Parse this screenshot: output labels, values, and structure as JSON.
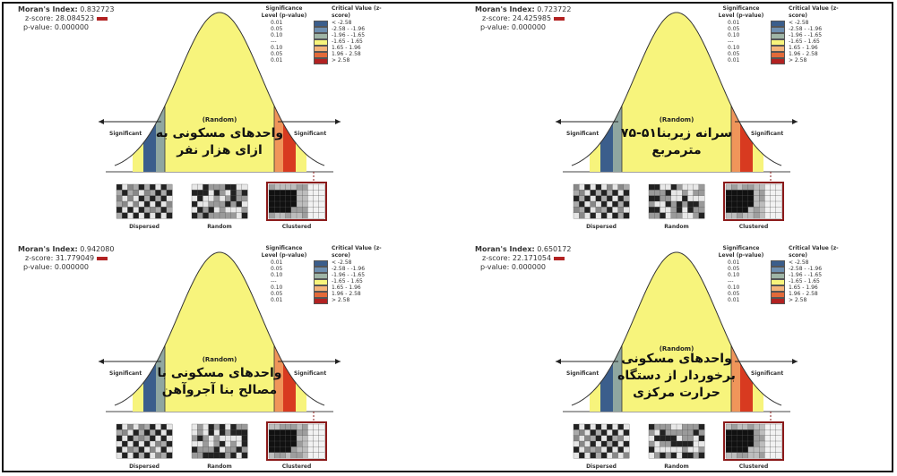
{
  "colors": {
    "curve_fill": "#f7f47c",
    "blue": "#3b5e8c",
    "teal": "#8fa6a0",
    "red": "#d83a20",
    "orange": "#f0955a",
    "dark_red": "#8b1a1a"
  },
  "labels": {
    "random": "(Random)",
    "significant": "Significant",
    "dispersed": "Dispersed",
    "random_map": "Random",
    "clustered": "Clustered",
    "moran": "Moran's Index:",
    "zscore": "z-score:",
    "pvalue": "p-value:"
  },
  "legend": {
    "header_sig": "Significance Level (p-value)",
    "header_crit": "Critical Value (z-score)",
    "rows": [
      {
        "p": "0.01",
        "z": "< -2.58"
      },
      {
        "p": "0.05",
        "z": "-2.58 - -1.96"
      },
      {
        "p": "0.10",
        "z": "-1.96 - -1.65"
      },
      {
        "p": "---",
        "z": "-1.65 - 1.65"
      },
      {
        "p": "0.10",
        "z": "1.65 - 1.96"
      },
      {
        "p": "0.05",
        "z": "1.96 - 2.58"
      },
      {
        "p": "0.01",
        "z": "> 2.58"
      }
    ]
  },
  "panels": [
    {
      "moran": "0.832723",
      "z": "28.084523",
      "p": "0.000000",
      "text_line1": "واحدهای مسکونی به",
      "text_line2": "ازای هزار نفر"
    },
    {
      "moran": "0.723722",
      "z": "24.425985",
      "p": "0.000000",
      "text_line1": "سرانه زیربنا۵۱-۷۵",
      "text_line2": "مترمربع"
    },
    {
      "moran": "0.942080",
      "z": "31.779049",
      "p": "0.000000",
      "text_line1": "واحدهای مسکونی با",
      "text_line2": "مصالح بنا آجروآهن"
    },
    {
      "moran": "0.650172",
      "z": "22.171054",
      "p": "0.000000",
      "text_line1": "واحدهای مسکونی",
      "text_line2": "برخوردار از دستگاه",
      "text_line3": "حرارت مرکزی"
    }
  ]
}
